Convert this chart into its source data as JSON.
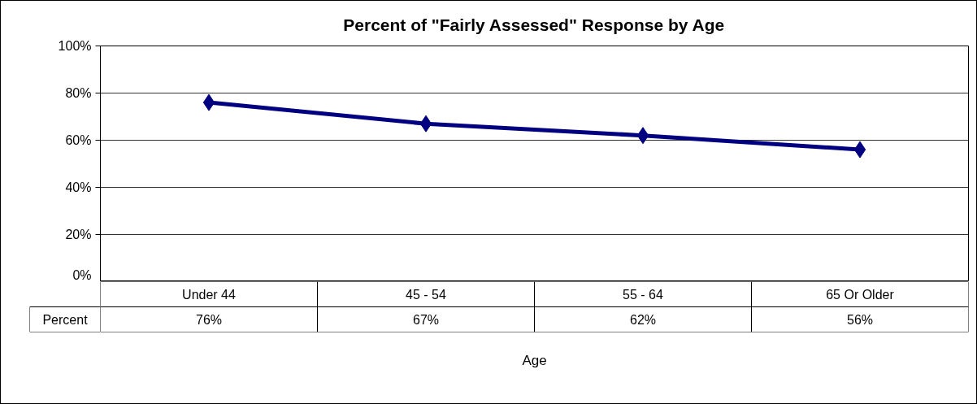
{
  "chart_data": {
    "type": "line",
    "title": "Percent of \"Fairly Assessed\" Response by Age",
    "xlabel": "Age",
    "categories": [
      "Under 44",
      "45 - 54",
      "55 - 64",
      "65 Or Older"
    ],
    "series": [
      {
        "name": "Percent",
        "color": "#000080",
        "values": [
          76,
          67,
          62,
          56
        ],
        "value_labels": [
          "76%",
          "67%",
          "62%",
          "56%"
        ]
      }
    ],
    "ylim": [
      0,
      100
    ],
    "yticks": [
      {
        "value": 0,
        "label": "0%"
      },
      {
        "value": 20,
        "label": "20%"
      },
      {
        "value": 40,
        "label": "40%"
      },
      {
        "value": 60,
        "label": "60%"
      },
      {
        "value": 80,
        "label": "80%"
      },
      {
        "value": 100,
        "label": "100%"
      }
    ],
    "grid": "y",
    "marker": "diamond",
    "line_style": "solid"
  }
}
